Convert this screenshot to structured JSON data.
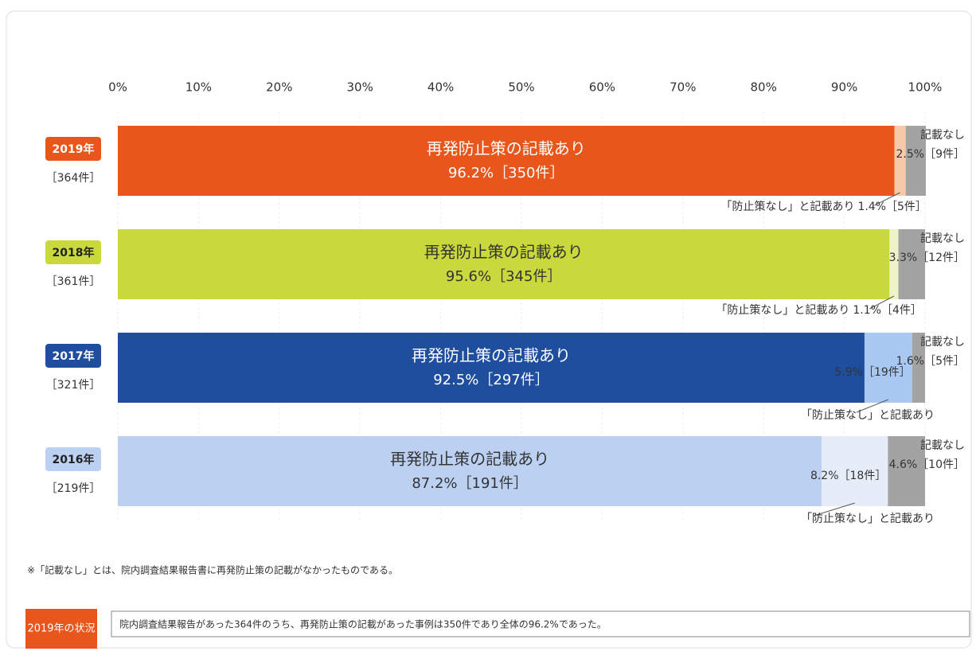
{
  "chart_data": {
    "type": "stacked-barh",
    "categories": [
      "2019年",
      "2018年",
      "2017年",
      "2016年"
    ],
    "category_counts": [
      "［364件］",
      "［361件］",
      "［321件］",
      "［219件］"
    ],
    "series": [
      {
        "name": "再発防止策の記載あり",
        "colors": [
          "#e8561c",
          "#c9d83c",
          "#1f4e9e",
          "#bcd0f2"
        ],
        "values": [
          96.2,
          95.6,
          92.5,
          87.2
        ],
        "value_labels": [
          "96.2%［350件］",
          "95.6%［345件］",
          "92.5%［297件］",
          "87.2%［191件］"
        ]
      },
      {
        "name": "「防止策なし」と記載あり",
        "colors": [
          "#f7c9a8",
          "#eef4c4",
          "#a8c8f2",
          "#e6edf8"
        ],
        "values": [
          1.4,
          1.1,
          5.9,
          8.2
        ],
        "value_labels": [
          "1.4%［5件］",
          "1.1%［4件］",
          "5.9%［19件］",
          "8.2%［18件］"
        ]
      },
      {
        "name": "記載なし",
        "colors": [
          "#a3a3a3",
          "#a3a3a3",
          "#a3a3a3",
          "#a3a3a3"
        ],
        "values": [
          2.5,
          3.3,
          1.6,
          4.6
        ],
        "value_labels": [
          "2.5%［9件］",
          "3.3%［12件］",
          "1.6%［5件］",
          "4.6%［10件］"
        ]
      }
    ],
    "xlim": [
      0,
      100
    ],
    "xticks": [
      {
        "value": 0,
        "label": "0%"
      },
      {
        "value": 10,
        "label": "10%"
      },
      {
        "value": 20,
        "label": "20%"
      },
      {
        "value": 30,
        "label": "30%"
      },
      {
        "value": 40,
        "label": "40%"
      },
      {
        "value": 50,
        "label": "50%"
      },
      {
        "value": 60,
        "label": "60%"
      },
      {
        "value": 70,
        "label": "70%"
      },
      {
        "value": 80,
        "label": "80%"
      },
      {
        "value": 90,
        "label": "90%"
      },
      {
        "value": 100,
        "label": "100%"
      }
    ],
    "grid": true,
    "footnote": "※「記載なし」とは、院内調査結果報告書に再発防止策の記載がなかったものである。",
    "summary_label": "2019年の状況",
    "summary_text": "院内調査結果報告があった364件のうち、再発防止策の記載があった事例は350件であり全体の96.2%であった。"
  }
}
